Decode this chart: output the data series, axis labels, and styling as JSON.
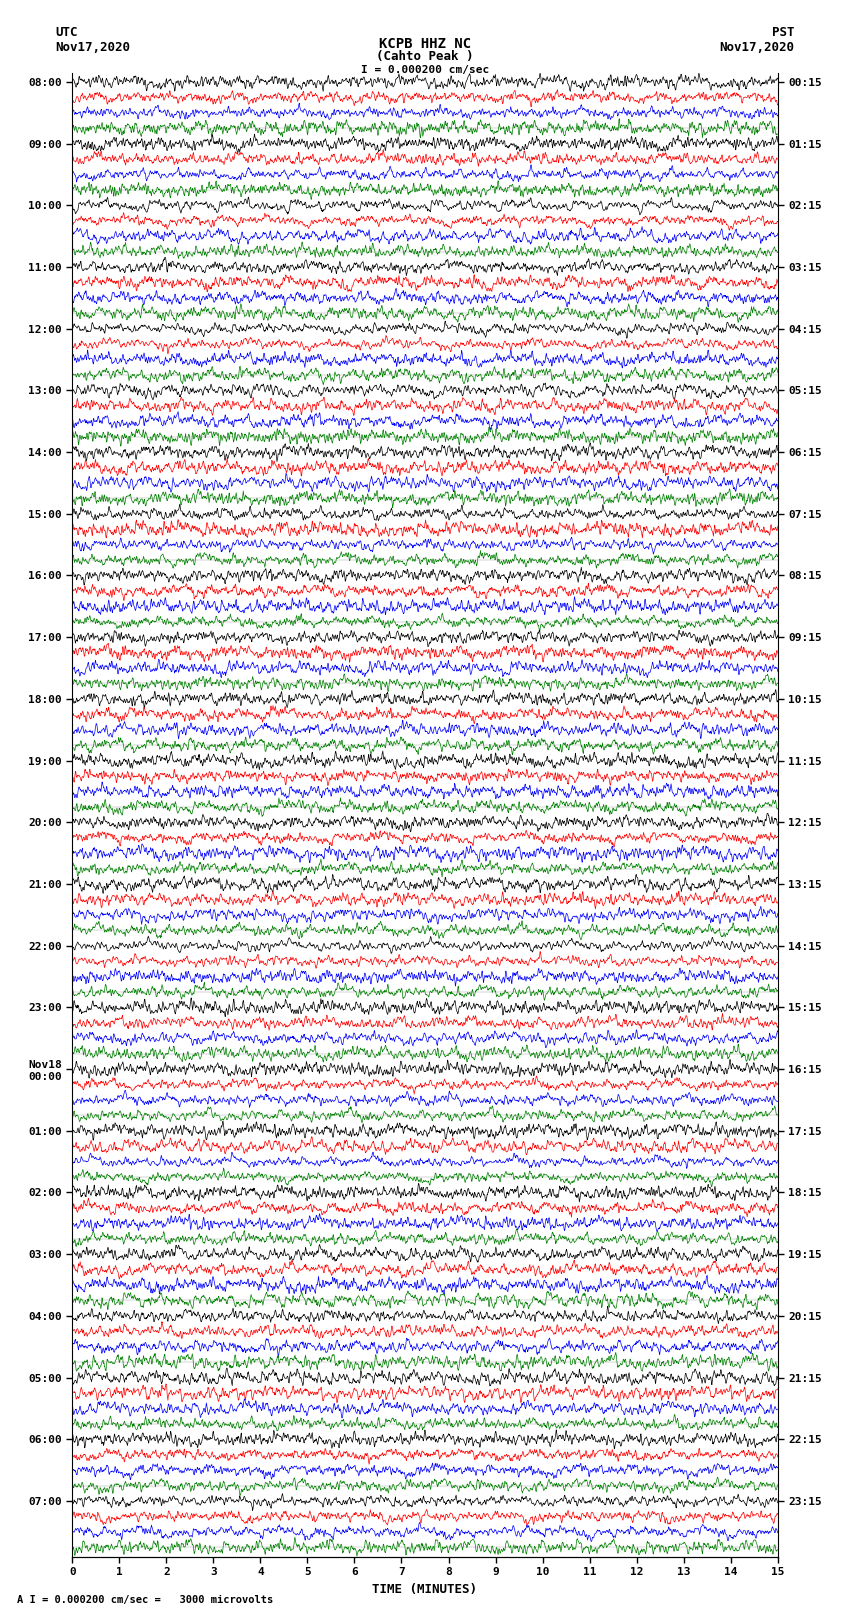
{
  "title_line1": "KCPB HHZ NC",
  "title_line2": "(Cahto Peak )",
  "scale_label": "I = 0.000200 cm/sec",
  "scale_label2": "A I = 0.000200 cm/sec =   3000 microvolts",
  "utc_label": "UTC\nNov17,2020",
  "pst_label": "PST\nNov17,2020",
  "xlabel": "TIME (MINUTES)",
  "utc_times": [
    "08:00",
    "09:00",
    "10:00",
    "11:00",
    "12:00",
    "13:00",
    "14:00",
    "15:00",
    "16:00",
    "17:00",
    "18:00",
    "19:00",
    "20:00",
    "21:00",
    "22:00",
    "23:00",
    "Nov18\n00:00",
    "01:00",
    "02:00",
    "03:00",
    "04:00",
    "05:00",
    "06:00",
    "07:00"
  ],
  "pst_times": [
    "00:15",
    "01:15",
    "02:15",
    "03:15",
    "04:15",
    "05:15",
    "06:15",
    "07:15",
    "08:15",
    "09:15",
    "10:15",
    "11:15",
    "12:15",
    "13:15",
    "14:15",
    "15:15",
    "16:15",
    "17:15",
    "18:15",
    "19:15",
    "20:15",
    "21:15",
    "22:15",
    "23:15"
  ],
  "trace_colors": [
    "black",
    "red",
    "blue",
    "green"
  ],
  "n_traces": 96,
  "n_points": 1800,
  "x_min": 0,
  "x_max": 15,
  "bg_color": "white",
  "trace_amplitude": 0.62,
  "title_fontsize": 10,
  "label_fontsize": 9,
  "tick_fontsize": 8,
  "figsize": [
    8.5,
    16.13
  ],
  "dpi": 100,
  "traces_per_hour": 4,
  "n_hour_labels": 24
}
